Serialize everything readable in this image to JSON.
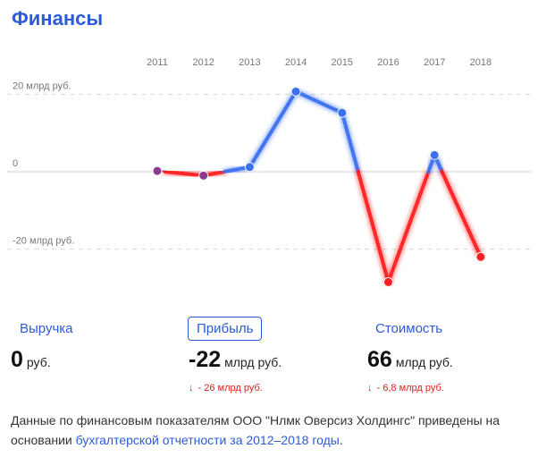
{
  "header": {
    "title": "Финансы"
  },
  "chart_data": {
    "type": "line",
    "categories": [
      "2011",
      "2012",
      "2013",
      "2014",
      "2015",
      "2016",
      "2017",
      "2018"
    ],
    "series": [
      {
        "values": [
          0.2,
          -1.0,
          1.2,
          20.7,
          15.2,
          -28.5,
          4.3,
          -22.0
        ]
      }
    ],
    "y_tick_labels": [
      {
        "value": 20,
        "label": "20 млрд руб."
      },
      {
        "value": 0,
        "label": "0"
      },
      {
        "value": -20,
        "label": "-20 млрд руб."
      }
    ],
    "ylim": [
      -31,
      24
    ],
    "grid": true,
    "colors": {
      "positive": "#3b6ef0",
      "negative": "#ff1f1f",
      "point_transition": "#8b3a8e"
    }
  },
  "metrics": [
    {
      "label": "Выручка",
      "value": "0",
      "unit": "руб.",
      "delta": ""
    },
    {
      "label": "Прибыль",
      "value": "-22",
      "unit": "млрд руб.",
      "delta": "- 26 млрд руб.",
      "active": true
    },
    {
      "label": "Стоимость",
      "value": "66",
      "unit": "млрд руб.",
      "delta": "- 6,8 млрд руб."
    }
  ],
  "delta_arrow": "↓",
  "footer": {
    "text": "Данные по финансовым показателям ООО \"Нлмк Оверсиз Холдингс\" приведены на основании ",
    "link": "бухгалтерской отчетности за 2012–2018 годы",
    "end": "."
  }
}
